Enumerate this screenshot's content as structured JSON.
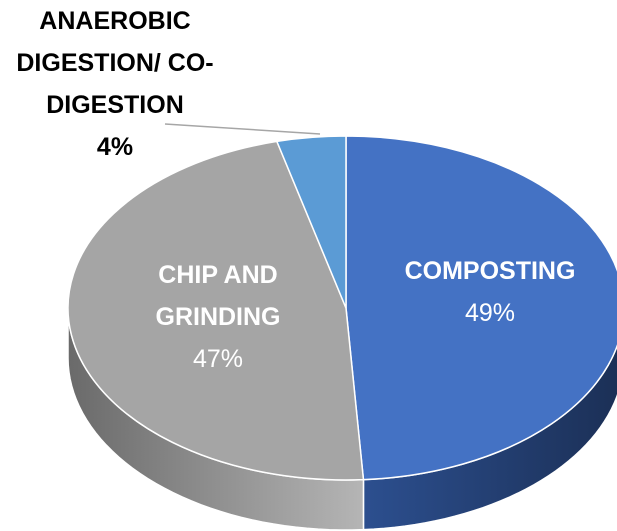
{
  "chart_data": {
    "type": "pie",
    "categories": [
      "COMPOSTING",
      "CHIP AND GRINDING",
      "ANAEROBIC DIGESTION/ CO-DIGESTION"
    ],
    "values": [
      49,
      47,
      4
    ],
    "value_labels": [
      "49%",
      "47%",
      "4%"
    ],
    "colors": [
      "#4472c4",
      "#a5a5a5",
      "#5b9bd5"
    ]
  }
}
